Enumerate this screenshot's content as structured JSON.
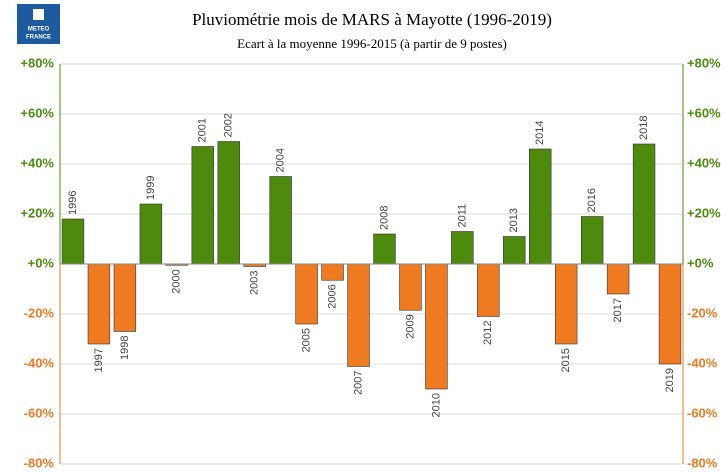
{
  "logo": {
    "lines": [
      "METEO",
      "FRANCE"
    ]
  },
  "chart_data": {
    "type": "bar",
    "title": "Pluviométrie mois de MARS à Mayotte (1996-2019)",
    "subtitle": "Ecart à la moyenne 1996-2015 (à partir de 9 postes)",
    "categories": [
      "1996",
      "1997",
      "1998",
      "1999",
      "2000",
      "2001",
      "2002",
      "2003",
      "2004",
      "2005",
      "2006",
      "2007",
      "2008",
      "2009",
      "2010",
      "2011",
      "2012",
      "2013",
      "2014",
      "2015",
      "2016",
      "2017",
      "2018",
      "2019"
    ],
    "values": [
      18,
      -32,
      -27,
      24,
      -0.5,
      47,
      49,
      -1,
      35,
      -24,
      -6.5,
      -41,
      12,
      -18.5,
      -50,
      13,
      -21,
      11,
      46,
      -32,
      19,
      -12,
      48,
      -40
    ],
    "positive_color": "#4e8a0e",
    "negative_color": "#ee7b22",
    "ylim": [
      -80,
      80
    ],
    "yticks": [
      {
        "value": -80,
        "label": "-80%"
      },
      {
        "value": -60,
        "label": "-60%"
      },
      {
        "value": -40,
        "label": "-40%"
      },
      {
        "value": -20,
        "label": "-20%"
      },
      {
        "value": 0,
        "label": "+0%"
      },
      {
        "value": 20,
        "label": "+20%"
      },
      {
        "value": 40,
        "label": "+40%"
      },
      {
        "value": 60,
        "label": "+60%"
      },
      {
        "value": 80,
        "label": "+80%"
      }
    ],
    "grid": true
  }
}
